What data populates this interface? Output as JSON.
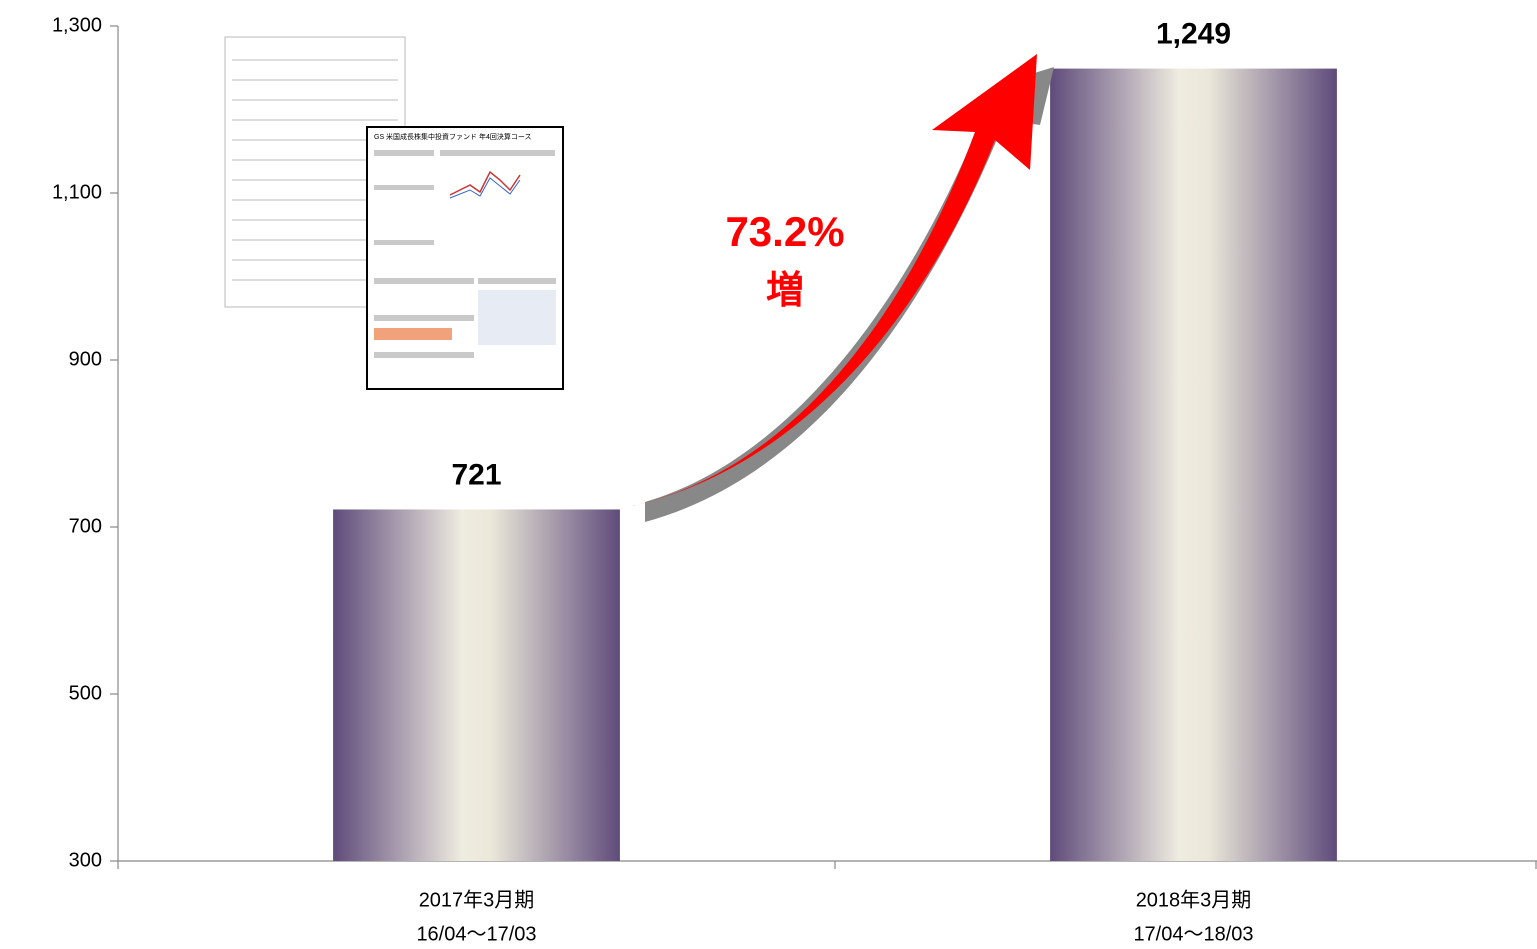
{
  "chart_data": {
    "type": "bar",
    "categories": [
      "2017年3月期",
      "2018年3月期"
    ],
    "period_labels": [
      "16/04〜17/03",
      "17/04〜18/03"
    ],
    "values": [
      721,
      1249
    ],
    "value_labels": [
      "721",
      "1,249"
    ],
    "color": "#5f4b7b",
    "ylim": [
      300,
      1300
    ],
    "yticks": [
      300,
      500,
      700,
      900,
      {
        "value": 1100,
        "label": "1,100"
      },
      {
        "value": 1300,
        "label": "1,300"
      }
    ],
    "annotation": {
      "text": "73.2%",
      "subtext": "増"
    },
    "document_title": "GS 米国成長株集中投資ファンド 年4回決算コース"
  }
}
